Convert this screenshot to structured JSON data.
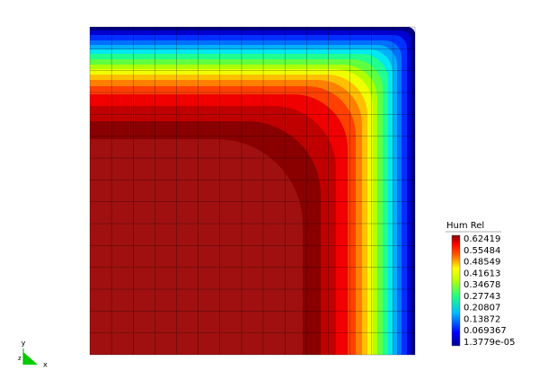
{
  "colorbar": {
    "title": "Hum Rel",
    "labels": [
      "0.62419",
      "0.55484",
      "0.48549",
      "0.41613",
      "0.34678",
      "0.27743",
      "0.20807",
      "0.13872",
      "0.069367",
      "1.3779e-05"
    ]
  },
  "axes_triad": {
    "y": "y",
    "z": "z",
    "x": "x"
  }
}
